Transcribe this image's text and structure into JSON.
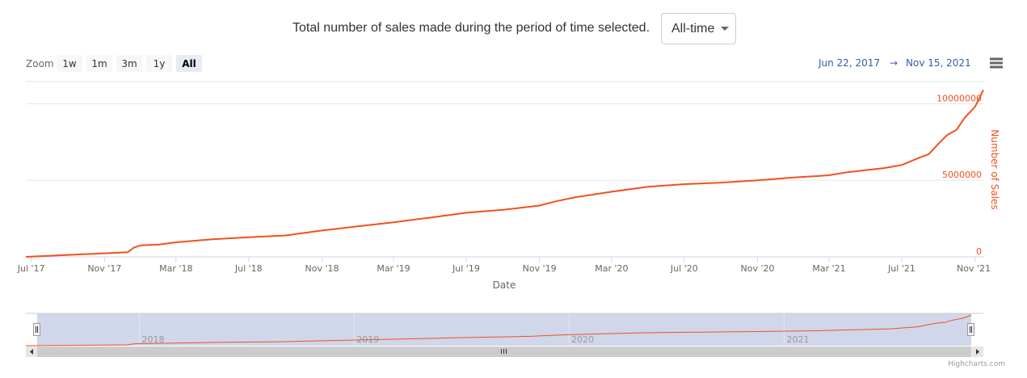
{
  "header": {
    "description": "Total number of sales made during the period of time selected.",
    "period_select": {
      "value": "All-time"
    }
  },
  "range_selector": {
    "zoom_label": "Zoom",
    "buttons": [
      "1w",
      "1m",
      "3m",
      "1y",
      "All"
    ],
    "selected": "All",
    "from": "Jun 22, 2017",
    "arrow": "→",
    "to": "Nov 15, 2021"
  },
  "menu_icon": "hamburger-menu-icon",
  "credits": "Highcharts.com",
  "colors": {
    "series": "#f0511e",
    "axis_label": "#f0511e",
    "navigator_mask": "#ced5e9",
    "range_text": "#335cad",
    "selected_button": "#e6ebf5"
  },
  "chart_data": {
    "type": "line",
    "xlabel": "Date",
    "ylabel": "Number of Sales",
    "ylim": [
      0,
      11500000
    ],
    "xlim": [
      "2017-06-22",
      "2021-11-15"
    ],
    "yticks": [
      "0",
      "5000000",
      "10000000"
    ],
    "xticks": [
      "Jul '17",
      "Nov '17",
      "Mar '18",
      "Jul '18",
      "Nov '18",
      "Mar '19",
      "Jul '19",
      "Nov '19",
      "Mar '20",
      "Jul '20",
      "Nov '20",
      "Mar '21",
      "Jul '21",
      "Nov '21"
    ],
    "navigator_ticks": [
      "2018",
      "2019",
      "2020",
      "2021"
    ],
    "grid": true,
    "series": [
      {
        "name": "Number of Sales",
        "x": [
          "2017-06-22",
          "2017-12-10",
          "2017-12-20",
          "2018-01-01",
          "2018-02-01",
          "2018-03-01",
          "2018-05-01",
          "2018-07-01",
          "2018-09-01",
          "2018-11-01",
          "2019-01-01",
          "2019-03-01",
          "2019-05-01",
          "2019-07-01",
          "2019-09-01",
          "2019-11-01",
          "2019-12-01",
          "2020-01-01",
          "2020-03-01",
          "2020-05-01",
          "2020-07-01",
          "2020-09-01",
          "2020-11-01",
          "2021-01-01",
          "2021-03-01",
          "2021-04-01",
          "2021-06-01",
          "2021-07-01",
          "2021-08-01",
          "2021-08-15",
          "2021-09-01",
          "2021-09-15",
          "2021-10-01",
          "2021-10-15",
          "2021-11-01",
          "2021-11-15"
        ],
        "values": [
          0,
          300000,
          600000,
          750000,
          800000,
          950000,
          1150000,
          1280000,
          1400000,
          1720000,
          2000000,
          2260000,
          2560000,
          2880000,
          3070000,
          3350000,
          3650000,
          3900000,
          4250000,
          4580000,
          4750000,
          4850000,
          5000000,
          5180000,
          5330000,
          5530000,
          5800000,
          6000000,
          6500000,
          6700000,
          7400000,
          7950000,
          8300000,
          9100000,
          9800000,
          10900000
        ]
      }
    ]
  }
}
